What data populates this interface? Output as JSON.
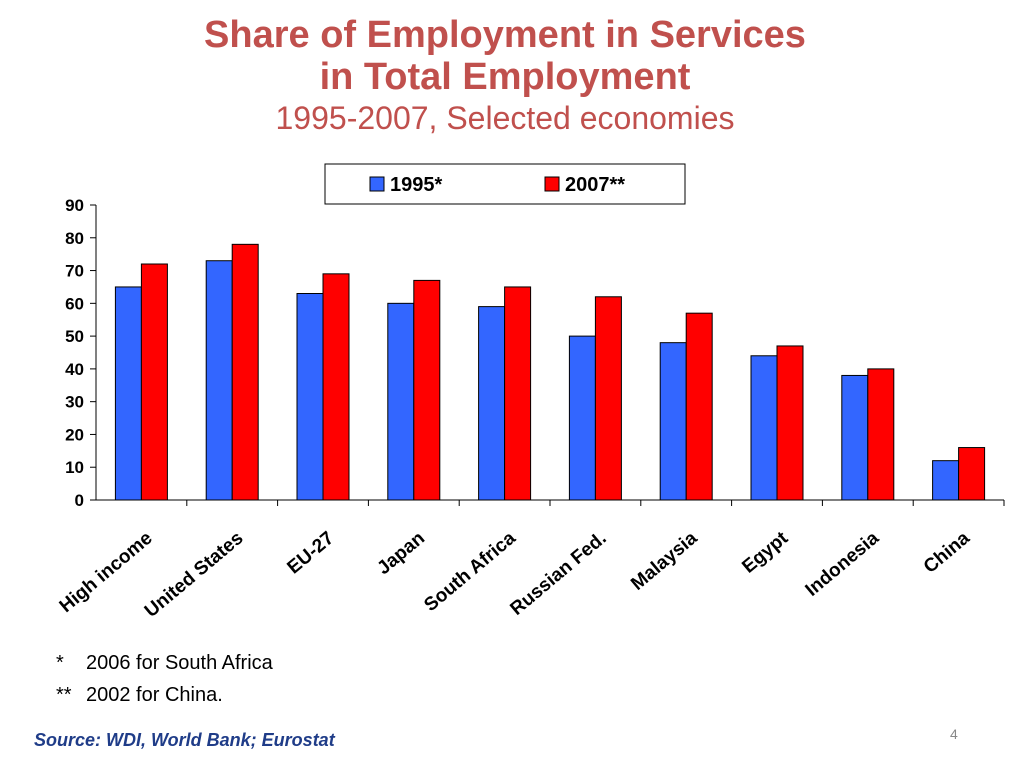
{
  "slide": {
    "title_line1": "Share of Employment in Services",
    "title_line2": "in Total Employment",
    "subtitle": "1995-2007, Selected economies",
    "footnotes": [
      {
        "mark": "*",
        "text": "2006 for South Africa"
      },
      {
        "mark": "**",
        "text": "2002 for China."
      }
    ],
    "source": "Source: WDI, World Bank; Eurostat",
    "page_number": "4"
  },
  "chart_data": {
    "type": "bar",
    "categories": [
      "High income",
      "United States",
      "EU-27",
      "Japan",
      "South Africa",
      "Russian Fed.",
      "Malaysia",
      "Egypt",
      "Indonesia",
      "China"
    ],
    "series": [
      {
        "name": "1995*",
        "color": "#3366ff",
        "values": [
          65,
          73,
          63,
          60,
          59,
          50,
          48,
          44,
          38,
          12
        ]
      },
      {
        "name": "2007**",
        "color": "#ff0000",
        "values": [
          72,
          78,
          69,
          67,
          65,
          62,
          57,
          47,
          40,
          16
        ]
      }
    ],
    "ylim": [
      0,
      90
    ],
    "yticks": [
      0,
      10,
      20,
      30,
      40,
      50,
      60,
      70,
      80,
      90
    ],
    "grid": false,
    "legend_position": "top"
  }
}
